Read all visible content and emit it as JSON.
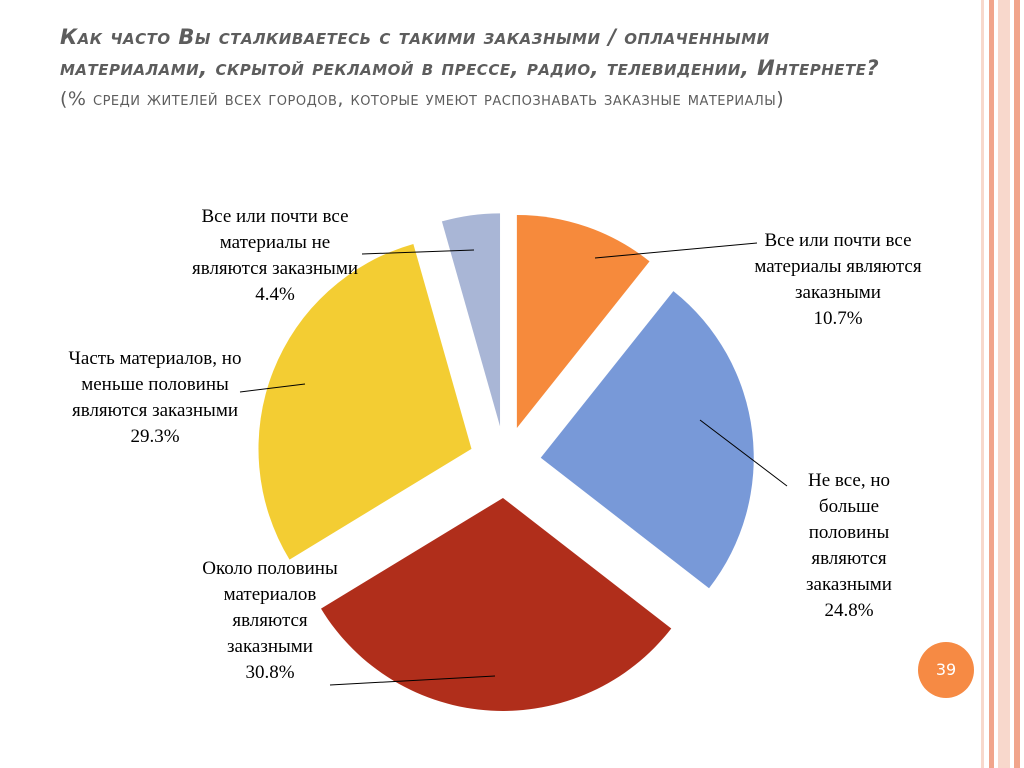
{
  "title": {
    "main": "Как часто Вы сталкиваетесь с такими заказными / оплаченными материалами, скрытой рекламой в прессе, радио, телевидении, Интернете?",
    "sub": "(% среди жителей всех городов, которые умеют распознавать заказные материалы)"
  },
  "page_number": "39",
  "colors": {
    "title_text": "#5d5d5d",
    "badge": "#f68a44",
    "stripe_light": "#f8d8cc",
    "stripe_dark": "#f1a58c"
  },
  "chart_data": {
    "type": "pie",
    "title": "",
    "slices": [
      {
        "label": "Все или почти все материалы являются заказными",
        "value": 10.7,
        "value_label": "10.7%",
        "color": "#f68a3c"
      },
      {
        "label": "Не все, но больше половины являются заказными",
        "value": 24.8,
        "value_label": "24.8%",
        "color": "#7899d8"
      },
      {
        "label": "Около половины материалов являются заказными",
        "value": 30.8,
        "value_label": "30.8%",
        "color": "#b02e1b"
      },
      {
        "label": "Часть материалов, но меньше половины являются заказными",
        "value": 29.3,
        "value_label": "29.3%",
        "color": "#f3cd33"
      },
      {
        "label": "Все или почти все материалы не являются заказными",
        "value": 4.4,
        "value_label": "4.4%",
        "color": "#a9b6d6"
      }
    ]
  }
}
